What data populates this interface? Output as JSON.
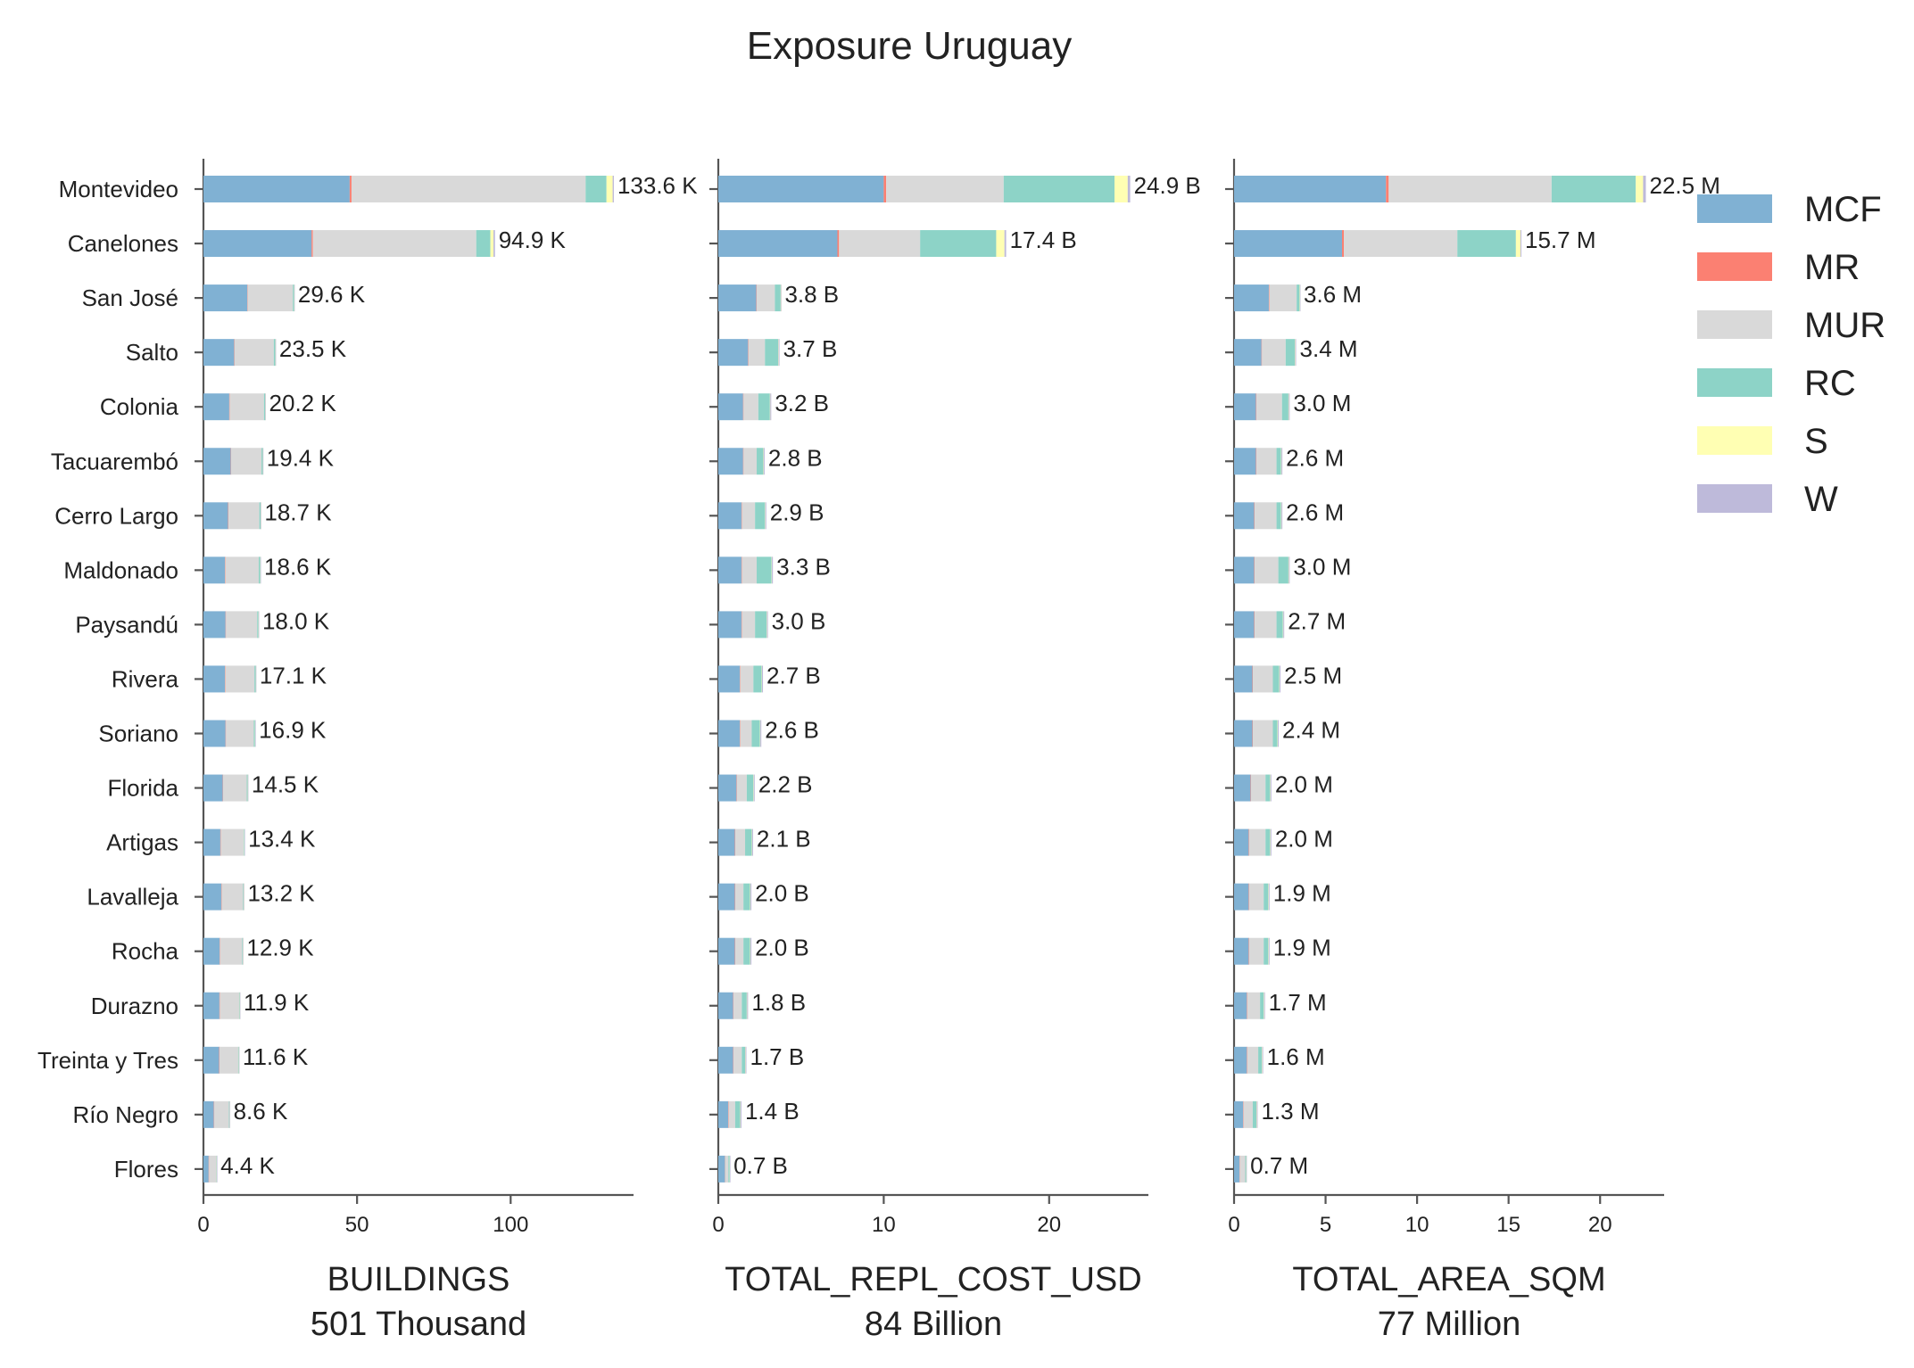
{
  "chart_data": {
    "type": "bar",
    "orientation": "horizontal",
    "stacked": true,
    "title": "Exposure Uruguay",
    "categories": [
      "Montevideo",
      "Canelones",
      "San José",
      "Salto",
      "Colonia",
      "Tacuarembó",
      "Cerro Largo",
      "Maldonado",
      "Paysandú",
      "Rivera",
      "Soriano",
      "Florida",
      "Artigas",
      "Lavalleja",
      "Rocha",
      "Durazno",
      "Treinta y Tres",
      "Río Negro",
      "Flores"
    ],
    "legend": {
      "position": "right",
      "items": [
        {
          "name": "MCF",
          "color": "#80b1d3"
        },
        {
          "name": "MR",
          "color": "#fb8072"
        },
        {
          "name": "MUR",
          "color": "#d9d9d9"
        },
        {
          "name": "RC",
          "color": "#8dd3c7"
        },
        {
          "name": "S",
          "color": "#ffffb3"
        },
        {
          "name": "W",
          "color": "#bebada"
        }
      ]
    },
    "panels": [
      {
        "xlabel": "BUILDINGS",
        "total_label": "501 Thousand",
        "xlim": [
          0,
          140
        ],
        "xticks": [
          0,
          50,
          100
        ],
        "value_labels": [
          "133.6 K",
          "94.9 K",
          "29.6 K",
          "23.5 K",
          "20.2 K",
          "19.4 K",
          "18.7 K",
          "18.6 K",
          "18.0 K",
          "17.1 K",
          "16.9 K",
          "14.5 K",
          "13.4 K",
          "13.2 K",
          "12.9 K",
          "11.9 K",
          "11.6 K",
          "8.6 K",
          "4.4 K"
        ],
        "series": {
          "MCF": [
            47.6,
            35.2,
            14.3,
            10.0,
            8.4,
            8.9,
            8.0,
            7.0,
            7.2,
            7.0,
            7.2,
            6.3,
            5.5,
            5.8,
            5.3,
            5.2,
            5.1,
            3.4,
            1.7
          ],
          "MR": [
            0.6,
            0.4,
            0.1,
            0.1,
            0.1,
            0.1,
            0.1,
            0.1,
            0.1,
            0.1,
            0.1,
            0.1,
            0.1,
            0.1,
            0.1,
            0.1,
            0.1,
            0.1,
            0.1
          ],
          "MUR": [
            76.2,
            53.2,
            14.7,
            12.8,
            11.2,
            9.9,
            10.1,
            10.9,
            10.2,
            9.5,
            9.1,
            7.7,
            7.5,
            7.0,
            7.2,
            6.3,
            6.1,
            4.8,
            2.4
          ],
          "RC": [
            6.8,
            4.6,
            0.4,
            0.5,
            0.4,
            0.4,
            0.4,
            0.5,
            0.4,
            0.4,
            0.4,
            0.3,
            0.2,
            0.2,
            0.2,
            0.2,
            0.2,
            0.2,
            0.1
          ],
          "S": [
            2.0,
            1.0,
            0.05,
            0.05,
            0.05,
            0.05,
            0.05,
            0.05,
            0.05,
            0.05,
            0.05,
            0.05,
            0.05,
            0.05,
            0.05,
            0.05,
            0.05,
            0.05,
            0.05
          ],
          "W": [
            0.4,
            0.5,
            0.05,
            0.05,
            0.05,
            0.05,
            0.05,
            0.05,
            0.05,
            0.05,
            0.05,
            0.05,
            0.05,
            0.05,
            0.05,
            0.05,
            0.05,
            0.05,
            0.05
          ]
        }
      },
      {
        "xlabel": "TOTAL_REPL_COST_USD",
        "total_label": "84 Billion",
        "xlim": [
          0,
          26
        ],
        "xticks": [
          0,
          10,
          20
        ],
        "value_labels": [
          "24.9 B",
          "17.4 B",
          "3.8 B",
          "3.7 B",
          "3.2 B",
          "2.8 B",
          "2.9 B",
          "3.3 B",
          "3.0 B",
          "2.7 B",
          "2.6 B",
          "2.2 B",
          "2.1 B",
          "2.0 B",
          "2.0 B",
          "1.8 B",
          "1.7 B",
          "1.4 B",
          "0.7 B"
        ],
        "series": {
          "MCF": [
            10.0,
            7.2,
            2.3,
            1.8,
            1.5,
            1.5,
            1.4,
            1.4,
            1.4,
            1.3,
            1.3,
            1.1,
            1.0,
            1.0,
            1.0,
            0.9,
            0.9,
            0.6,
            0.4
          ],
          "MR": [
            0.15,
            0.1,
            0.02,
            0.02,
            0.02,
            0.02,
            0.02,
            0.02,
            0.02,
            0.02,
            0.02,
            0.02,
            0.02,
            0.02,
            0.02,
            0.02,
            0.02,
            0.02,
            0.01
          ],
          "MUR": [
            7.1,
            4.9,
            1.1,
            1.0,
            0.9,
            0.8,
            0.8,
            0.9,
            0.8,
            0.8,
            0.7,
            0.6,
            0.6,
            0.5,
            0.5,
            0.5,
            0.5,
            0.4,
            0.2
          ],
          "RC": [
            6.7,
            4.6,
            0.35,
            0.8,
            0.7,
            0.4,
            0.6,
            0.9,
            0.7,
            0.5,
            0.5,
            0.4,
            0.4,
            0.4,
            0.4,
            0.3,
            0.2,
            0.3,
            0.08
          ],
          "S": [
            0.8,
            0.5,
            0.02,
            0.02,
            0.02,
            0.02,
            0.02,
            0.02,
            0.02,
            0.02,
            0.02,
            0.02,
            0.02,
            0.02,
            0.02,
            0.02,
            0.02,
            0.02,
            0.01
          ],
          "W": [
            0.15,
            0.1,
            0.01,
            0.06,
            0.06,
            0.06,
            0.06,
            0.06,
            0.06,
            0.06,
            0.06,
            0.06,
            0.06,
            0.06,
            0.06,
            0.06,
            0.06,
            0.06,
            0.01
          ]
        }
      },
      {
        "xlabel": "TOTAL_AREA_SQM",
        "total_label": "77 Million",
        "xlim": [
          0,
          23.5
        ],
        "xticks": [
          0,
          5,
          10,
          15,
          20
        ],
        "value_labels": [
          "22.5 M",
          "15.7 M",
          "3.6 M",
          "3.4 M",
          "3.0 M",
          "2.6 M",
          "2.6 M",
          "3.0 M",
          "2.7 M",
          "2.5 M",
          "2.4 M",
          "2.0 M",
          "2.0 M",
          "1.9 M",
          "1.9 M",
          "1.7 M",
          "1.6 M",
          "1.3 M",
          "0.7 M"
        ],
        "series": {
          "MCF": [
            8.3,
            5.9,
            1.9,
            1.5,
            1.2,
            1.2,
            1.1,
            1.1,
            1.1,
            1.0,
            1.0,
            0.9,
            0.8,
            0.8,
            0.8,
            0.7,
            0.7,
            0.5,
            0.3
          ],
          "MR": [
            0.15,
            0.1,
            0.02,
            0.02,
            0.02,
            0.02,
            0.02,
            0.02,
            0.02,
            0.02,
            0.02,
            0.02,
            0.02,
            0.02,
            0.02,
            0.02,
            0.02,
            0.02,
            0.01
          ],
          "MUR": [
            8.9,
            6.2,
            1.5,
            1.3,
            1.4,
            1.1,
            1.2,
            1.3,
            1.2,
            1.1,
            1.1,
            0.8,
            0.9,
            0.8,
            0.8,
            0.7,
            0.6,
            0.5,
            0.3
          ],
          "RC": [
            4.6,
            3.2,
            0.16,
            0.5,
            0.35,
            0.25,
            0.25,
            0.55,
            0.35,
            0.35,
            0.25,
            0.25,
            0.25,
            0.25,
            0.25,
            0.2,
            0.2,
            0.2,
            0.05
          ],
          "S": [
            0.4,
            0.25,
            0.02,
            0.02,
            0.02,
            0.02,
            0.02,
            0.02,
            0.02,
            0.02,
            0.02,
            0.02,
            0.02,
            0.02,
            0.02,
            0.02,
            0.02,
            0.02,
            0.01
          ],
          "W": [
            0.15,
            0.05,
            0.01,
            0.05,
            0.05,
            0.05,
            0.05,
            0.05,
            0.05,
            0.05,
            0.05,
            0.05,
            0.05,
            0.05,
            0.05,
            0.05,
            0.05,
            0.05,
            0.02
          ]
        }
      }
    ]
  }
}
